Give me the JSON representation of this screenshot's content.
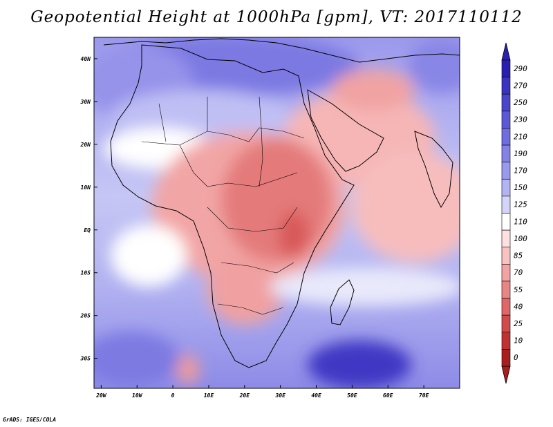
{
  "title": "Geopotential Height at 1000hPa [gpm], VT: 2017110112",
  "footer": "GrADS: IGES/COLA",
  "map": {
    "variable": "Geopotential Height at 1000hPa",
    "units": "gpm",
    "valid_time": "2017110112",
    "lon_range": [
      -22,
      80
    ],
    "lat_range": [
      -37,
      45
    ],
    "lat_ticks": [
      {
        "value": 40,
        "label": "40N"
      },
      {
        "value": 30,
        "label": "30N"
      },
      {
        "value": 20,
        "label": "20N"
      },
      {
        "value": 10,
        "label": "10N"
      },
      {
        "value": 0,
        "label": "EQ"
      },
      {
        "value": -10,
        "label": "10S"
      },
      {
        "value": -20,
        "label": "20S"
      },
      {
        "value": -30,
        "label": "30S"
      }
    ],
    "lon_ticks": [
      {
        "value": -20,
        "label": "20W"
      },
      {
        "value": -10,
        "label": "10W"
      },
      {
        "value": 0,
        "label": "0"
      },
      {
        "value": 10,
        "label": "10E"
      },
      {
        "value": 20,
        "label": "20E"
      },
      {
        "value": 30,
        "label": "30E"
      },
      {
        "value": 40,
        "label": "40E"
      },
      {
        "value": 50,
        "label": "50E"
      },
      {
        "value": 60,
        "label": "60E"
      },
      {
        "value": 70,
        "label": "70E"
      }
    ]
  },
  "colorbar": {
    "levels": [
      "290",
      "270",
      "250",
      "230",
      "210",
      "190",
      "170",
      "150",
      "125",
      "110",
      "100",
      "85",
      "70",
      "55",
      "40",
      "25",
      "10",
      "0"
    ],
    "colors": [
      "#2a1fb0",
      "#3a32c0",
      "#4b45cc",
      "#5d59d6",
      "#6f6ddf",
      "#8482e6",
      "#9a99ec",
      "#b4b4f2",
      "#d4d4f8",
      "#ffffff",
      "#fde0e0",
      "#f9c2c2",
      "#f2a3a3",
      "#e98585",
      "#df6767",
      "#d24a4a",
      "#c23131",
      "#a81d1d"
    ]
  }
}
